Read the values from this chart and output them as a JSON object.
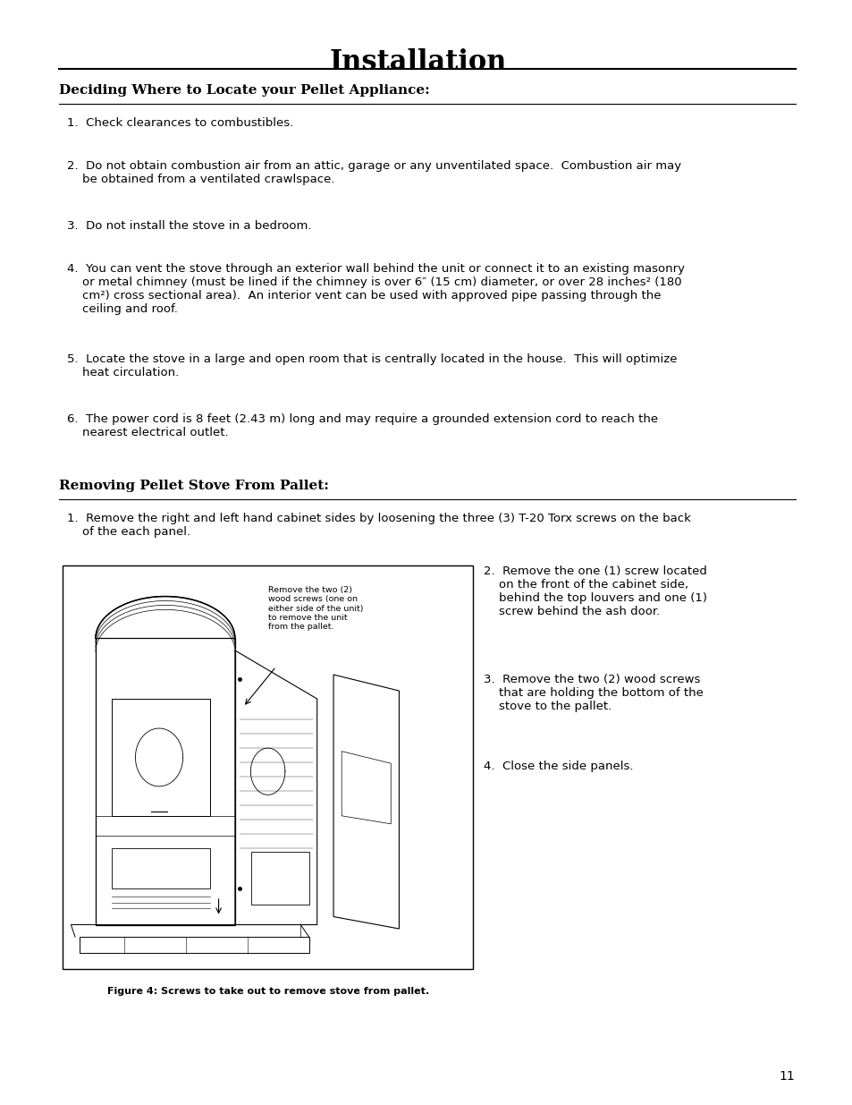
{
  "page_background": "#ffffff",
  "page_width": 9.54,
  "page_height": 12.35,
  "title": "Installation",
  "title_fontsize": 22,
  "section1_heading": "Deciding Where to Locate your Pellet Appliance:",
  "section1_heading_fontsize": 11,
  "section1_items": [
    "1.  Check clearances to combustibles.",
    "2.  Do not obtain combustion air from an attic, garage or any unventilated space.  Combustion air may\n    be obtained from a ventilated crawlspace.",
    "3.  Do not install the stove in a bedroom.",
    "4.  You can vent the stove through an exterior wall behind the unit or connect it to an existing masonry\n    or metal chimney (must be lined if the chimney is over 6″ (15 cm) diameter, or over 28 inches² (180\n    cm²) cross sectional area).  An interior vent can be used with approved pipe passing through the\n    ceiling and roof.",
    "5.  Locate the stove in a large and open room that is centrally located in the house.  This will optimize\n    heat circulation.",
    "6.  The power cord is 8 feet (2.43 m) long and may require a grounded extension cord to reach the\n    nearest electrical outlet."
  ],
  "section2_heading": "Removing Pellet Stove From Pallet:",
  "section2_heading_fontsize": 11,
  "removing_item1": "1.  Remove the right and left hand cabinet sides by loosening the three (3) T-20 Torx screws on the back\n    of the each panel.",
  "removing_items_right": [
    "2.  Remove the one (1) screw located\n    on the front of the cabinet side,\n    behind the top louvers and one (1)\n    screw behind the ash door.",
    "3.  Remove the two (2) wood screws\n    that are holding the bottom of the\n    stove to the pallet.",
    "4.  Close the side panels."
  ],
  "figure_caption": "Figure 4: Screws to take out to remove stove from pallet.",
  "image_label_text": "Remove the two (2)\nwood screws (one on\neither side of the unit)\nto remove the unit\nfrom the pallet.",
  "page_number": "11",
  "body_fontsize": 9.5,
  "text_color": "#000000"
}
